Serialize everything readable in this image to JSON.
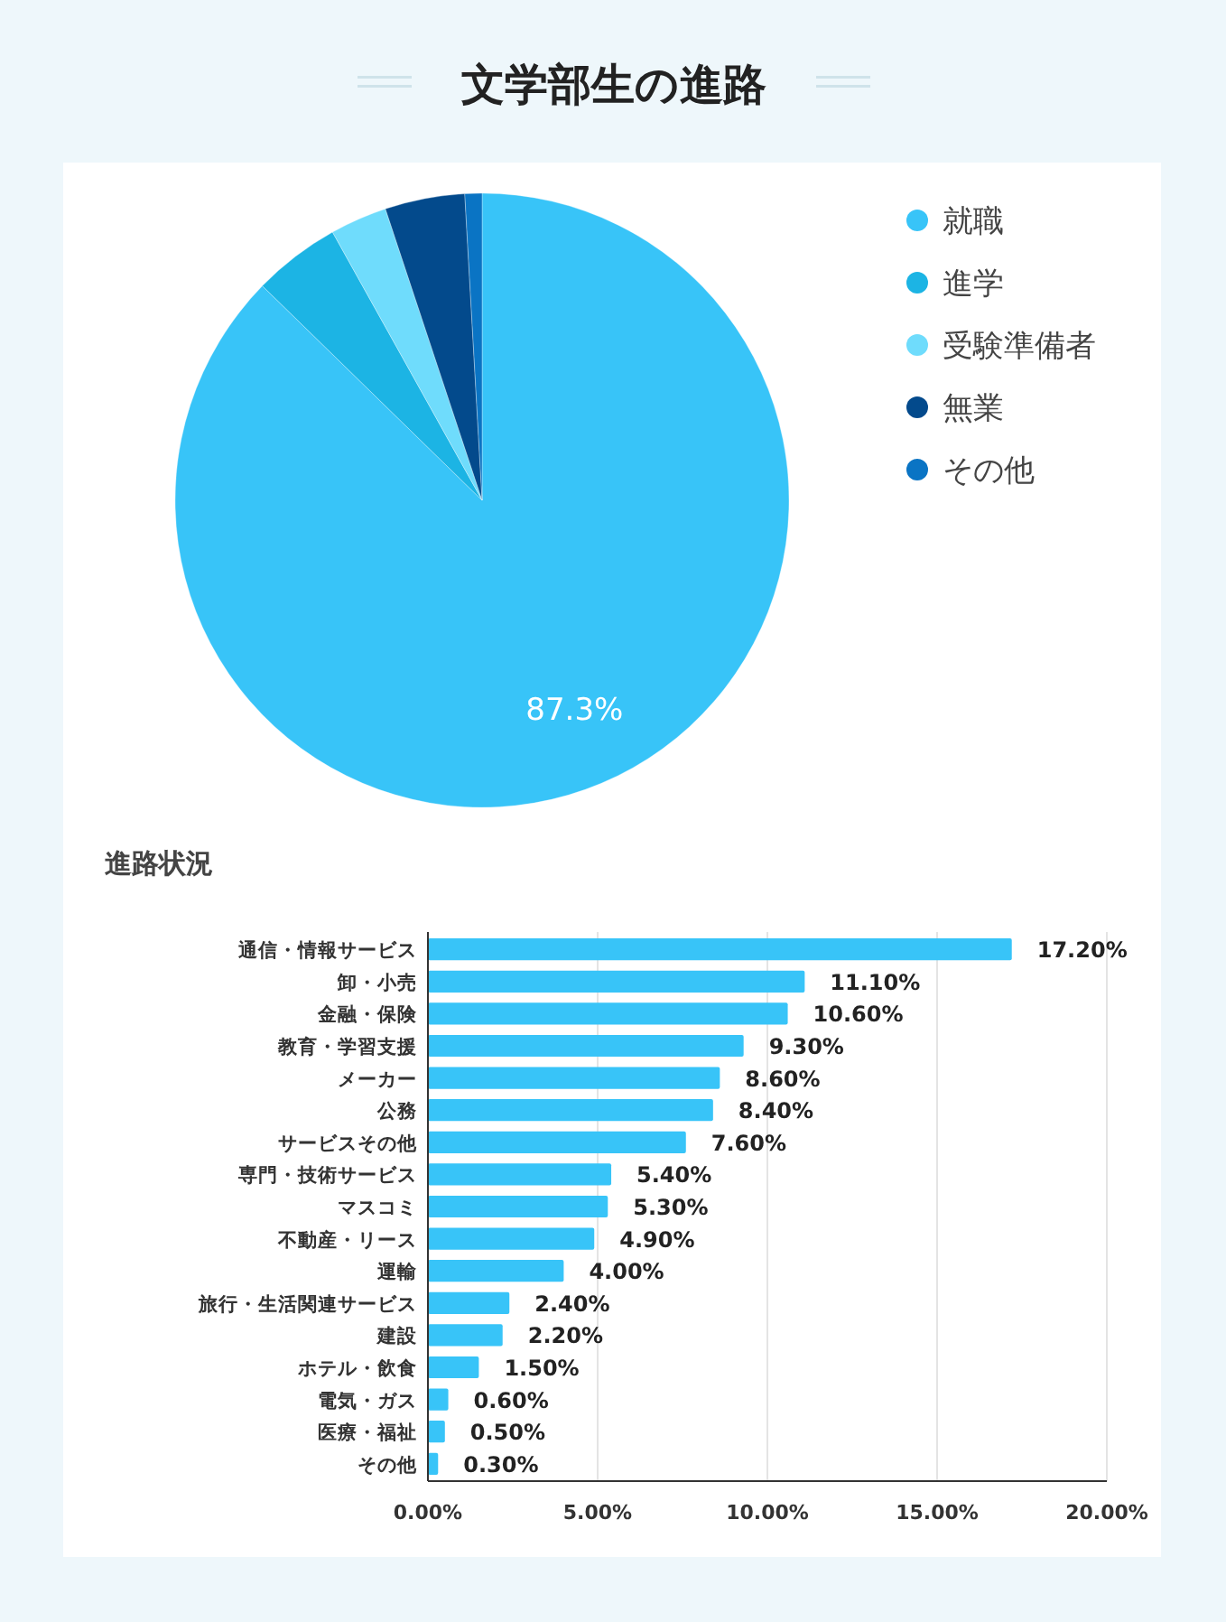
{
  "chart_data": [
    {
      "type": "pie",
      "title": "文学部生の進路",
      "categories": [
        "就職",
        "進学",
        "受験準備者",
        "無業",
        "その他"
      ],
      "values": [
        87.3,
        4.6,
        3.0,
        4.2,
        0.9
      ],
      "colors": [
        "#38c4f8",
        "#1cb4e4",
        "#6fdcfc",
        "#034a8c",
        "#0a74c4"
      ],
      "value_labels": [
        "87.3%",
        null,
        null,
        null,
        null
      ],
      "legend": "right"
    },
    {
      "type": "bar",
      "orientation": "horizontal",
      "title": "進路状況",
      "categories": [
        "通信・情報サービス",
        "卸・小売",
        "金融・保険",
        "教育・学習支援",
        "メーカー",
        "公務",
        "サービスその他",
        "専門・技術サービス",
        "マスコミ",
        "不動産・リース",
        "運輸",
        "旅行・生活関連サービス",
        "建設",
        "ホテル・飲食",
        "電気・ガス",
        "医療・福祉",
        "その他"
      ],
      "values": [
        17.2,
        11.1,
        10.6,
        9.3,
        8.6,
        8.4,
        7.6,
        5.4,
        5.3,
        4.9,
        4.0,
        2.4,
        2.2,
        1.5,
        0.6,
        0.5,
        0.3
      ],
      "color": "#38c4f8",
      "value_labels": [
        "17.20%",
        "11.10%",
        "10.60%",
        "9.30%",
        "8.60%",
        "8.40%",
        "7.60%",
        "5.40%",
        "5.30%",
        "4.90%",
        "4.00%",
        "2.40%",
        "2.20%",
        "1.50%",
        "0.60%",
        "0.50%",
        "0.30%"
      ],
      "xlim": [
        0,
        20
      ],
      "xticks": [
        {
          "value": 0,
          "label": "0.00%"
        },
        {
          "value": 5,
          "label": "5.00%"
        },
        {
          "value": 10,
          "label": "10.00%"
        },
        {
          "value": 15,
          "label": "15.00%"
        },
        {
          "value": 20,
          "label": "20.00%"
        }
      ],
      "grid": "x"
    }
  ]
}
